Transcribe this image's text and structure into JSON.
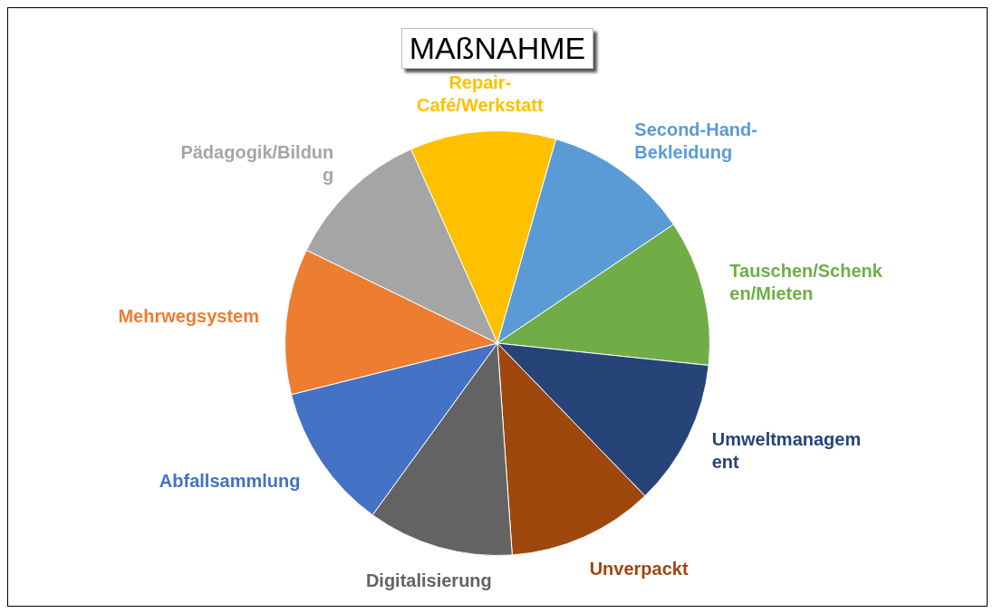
{
  "chart_data": {
    "type": "pie",
    "title": "MAßNAHME",
    "categories": [
      "Repair-Café/Werkstatt",
      "Second-Hand-Bekleidung",
      "Tauschen/Schenken/Mieten",
      "Umweltmanagement",
      "Unverpackt",
      "Digitalisierung",
      "Abfallsammlung",
      "Mehrwegsystem",
      "Pädagogik/Bildung"
    ],
    "values": [
      11.1,
      11.1,
      11.1,
      11.1,
      11.1,
      11.1,
      11.1,
      11.1,
      11.1
    ],
    "colors": [
      "#ffc000",
      "#5b9bd5",
      "#70ad47",
      "#264478",
      "#9e480e",
      "#636363",
      "#4472c4",
      "#ed7d31",
      "#a5a5a5"
    ],
    "legend": false
  }
}
